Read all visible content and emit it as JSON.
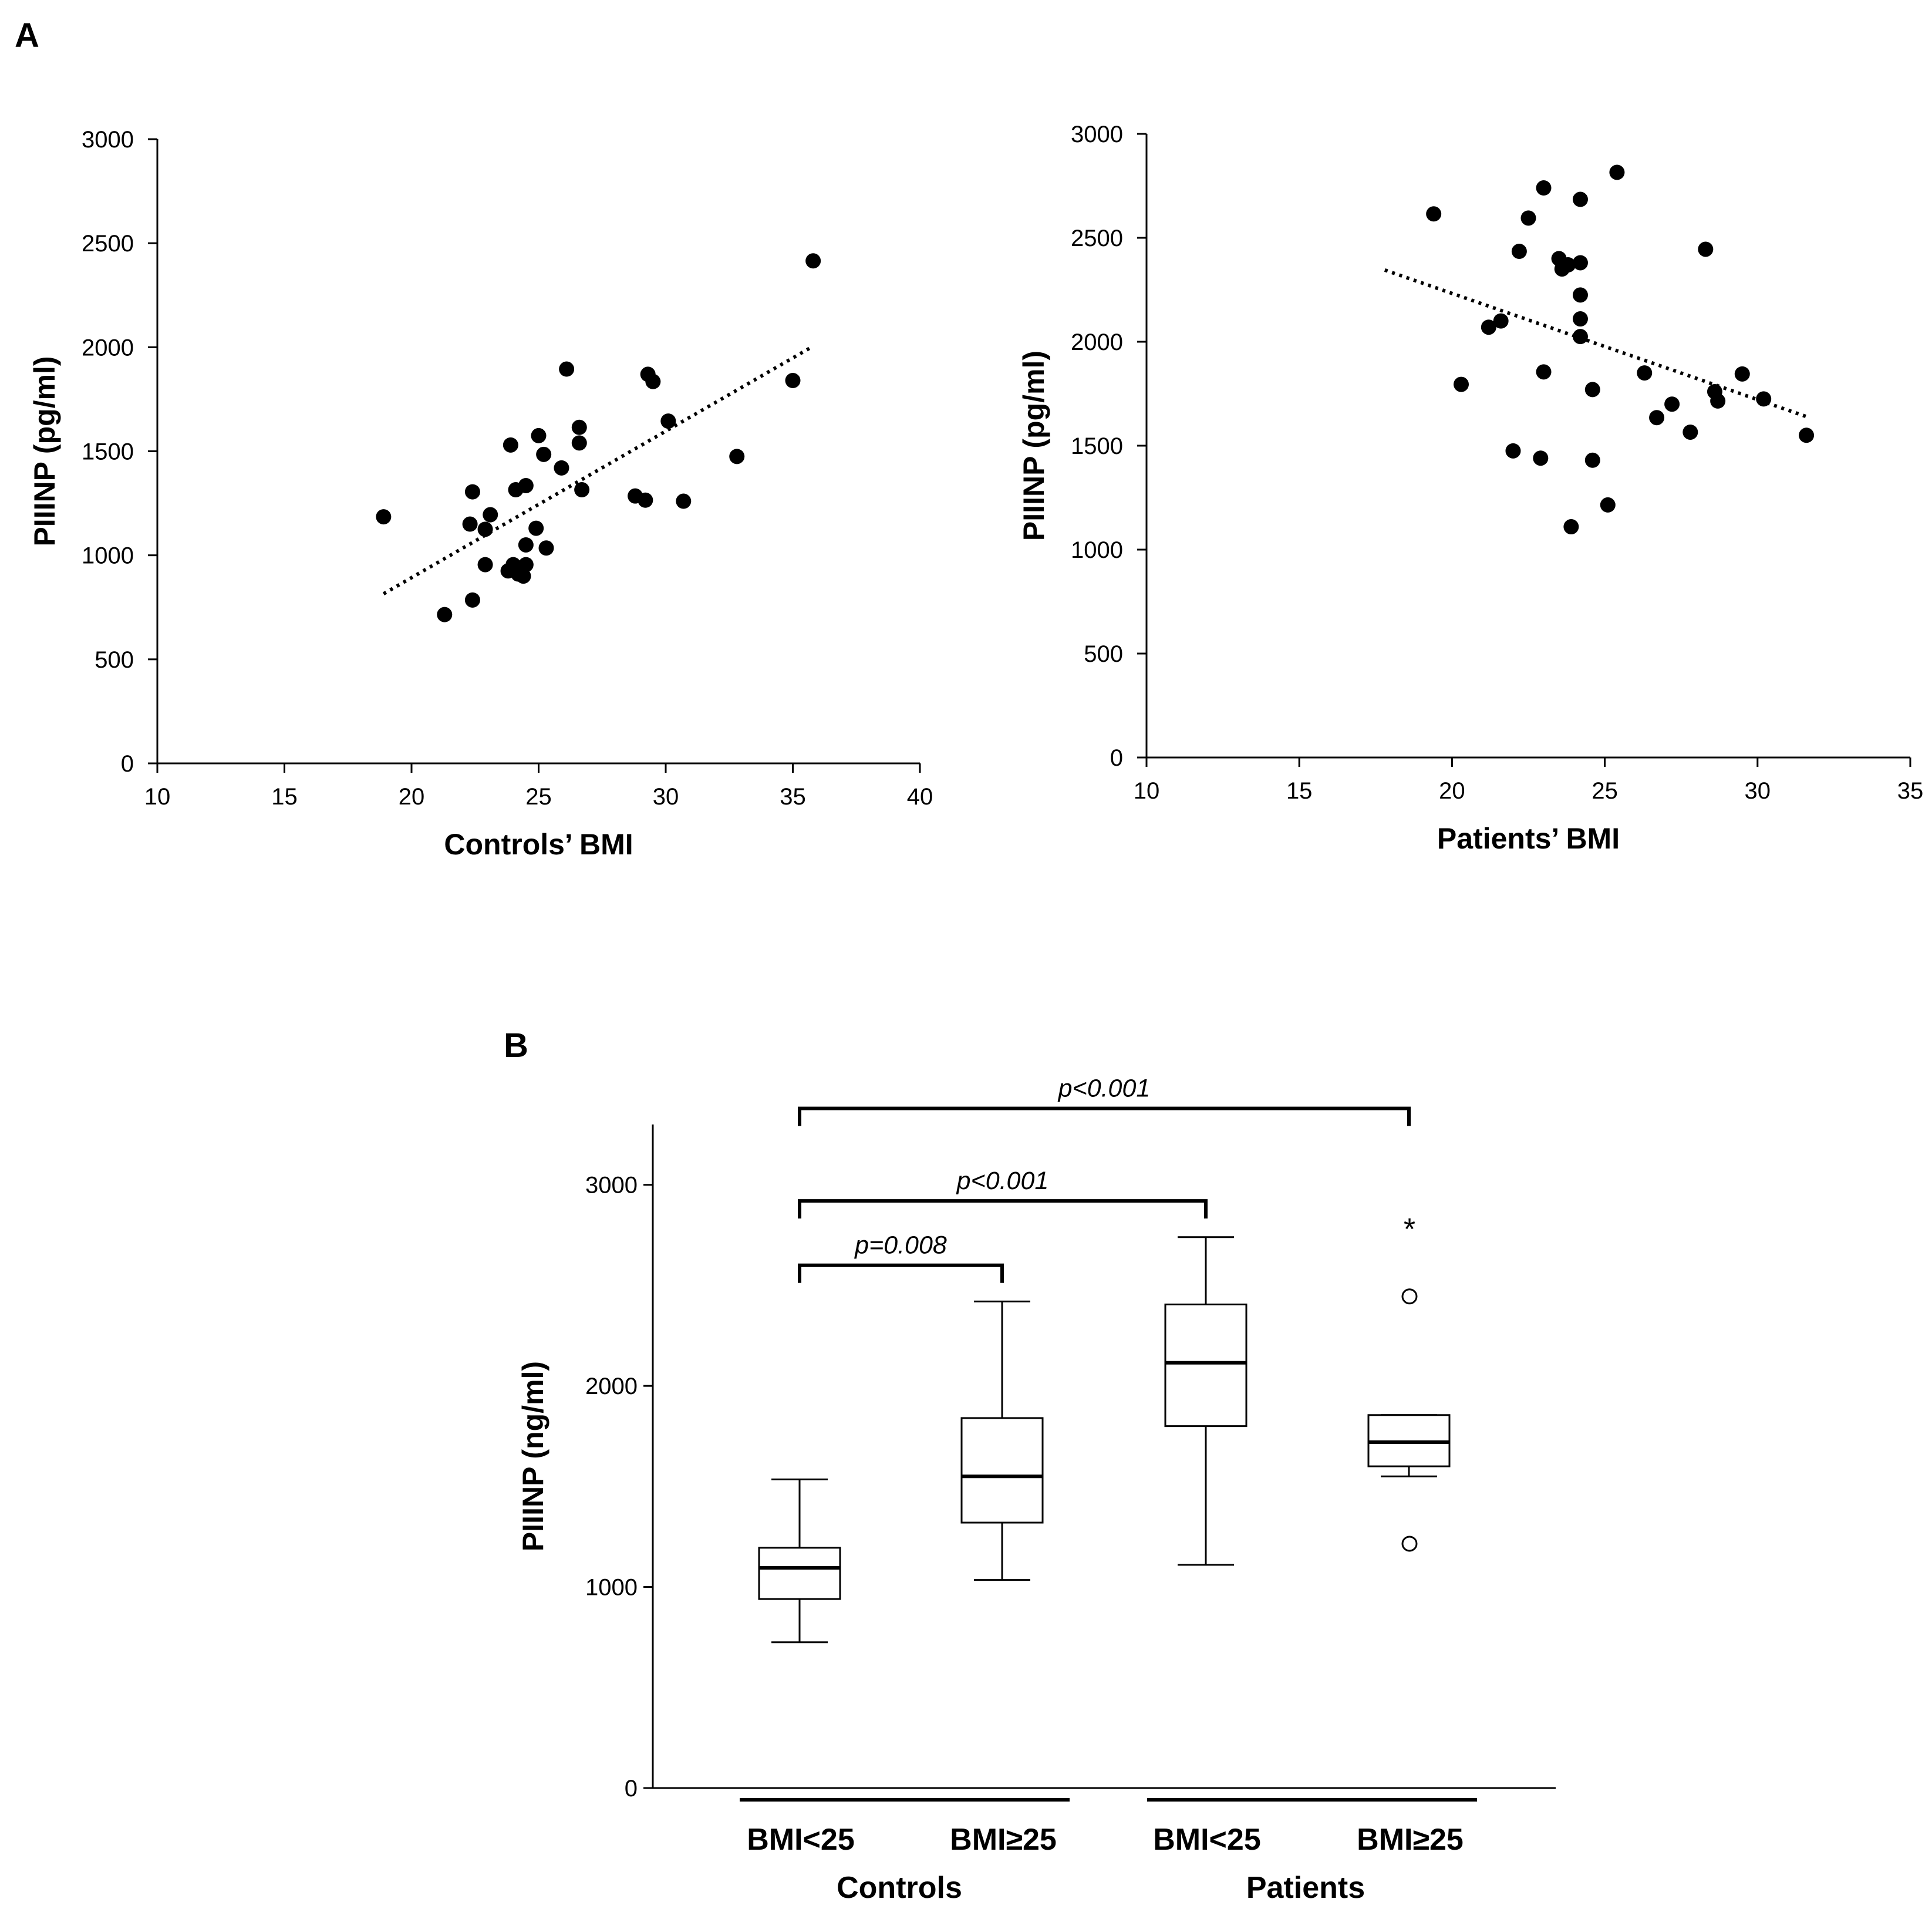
{
  "figure": {
    "panel_a_label": "A",
    "panel_b_label": "B"
  },
  "chart_data": [
    {
      "id": "controls",
      "type": "scatter",
      "title": "",
      "xlabel": "Controls’ BMI",
      "ylabel": "PIIINP (pg/ml)",
      "xlim": [
        10,
        40
      ],
      "ylim": [
        0,
        3000
      ],
      "xticks": [
        "10",
        "15",
        "20",
        "25",
        "30",
        "35",
        "40"
      ],
      "yticks": [
        "0",
        "500",
        "1000",
        "1500",
        "2000",
        "2500",
        "3000"
      ],
      "points": [
        [
          18.9,
          1185
        ],
        [
          21.3,
          715
        ],
        [
          22.3,
          1150
        ],
        [
          22.4,
          1305
        ],
        [
          22.4,
          785
        ],
        [
          22.9,
          1125
        ],
        [
          22.9,
          955
        ],
        [
          23.1,
          1195
        ],
        [
          23.8,
          925
        ],
        [
          23.9,
          1530
        ],
        [
          24.0,
          955
        ],
        [
          24.1,
          1315
        ],
        [
          24.2,
          910
        ],
        [
          24.4,
          900
        ],
        [
          24.5,
          955
        ],
        [
          24.5,
          1335
        ],
        [
          24.5,
          1050
        ],
        [
          24.9,
          1130
        ],
        [
          25.0,
          1575
        ],
        [
          25.2,
          1485
        ],
        [
          25.3,
          1035
        ],
        [
          25.9,
          1420
        ],
        [
          26.1,
          1895
        ],
        [
          26.6,
          1540
        ],
        [
          26.6,
          1615
        ],
        [
          26.7,
          1315
        ],
        [
          28.8,
          1285
        ],
        [
          29.2,
          1265
        ],
        [
          29.3,
          1870
        ],
        [
          29.5,
          1835
        ],
        [
          30.1,
          1645
        ],
        [
          30.7,
          1260
        ],
        [
          32.8,
          1475
        ],
        [
          35.0,
          1840
        ],
        [
          35.8,
          2415
        ]
      ],
      "trendline": {
        "x0": 18.9,
        "y0": 815,
        "x1": 35.8,
        "y1": 2005
      }
    },
    {
      "id": "patients",
      "type": "scatter",
      "title": "",
      "xlabel": "Patients’ BMI",
      "ylabel": "PIIINP (pg/ml)",
      "xlim": [
        10,
        35
      ],
      "ylim": [
        0,
        3000
      ],
      "xticks": [
        "10",
        "15",
        "20",
        "25",
        "30",
        "35"
      ],
      "yticks": [
        "0",
        "500",
        "1000",
        "1500",
        "2000",
        "2500",
        "3000"
      ],
      "points": [
        [
          19.4,
          2615
        ],
        [
          20.3,
          1795
        ],
        [
          21.2,
          2070
        ],
        [
          21.6,
          2100
        ],
        [
          22.0,
          1475
        ],
        [
          22.2,
          2435
        ],
        [
          22.5,
          2595
        ],
        [
          22.9,
          1440
        ],
        [
          23.0,
          1855
        ],
        [
          23.0,
          2740
        ],
        [
          23.5,
          2400
        ],
        [
          23.6,
          2350
        ],
        [
          23.8,
          2370
        ],
        [
          23.9,
          1110
        ],
        [
          24.2,
          2380
        ],
        [
          24.2,
          2225
        ],
        [
          24.2,
          2110
        ],
        [
          24.2,
          2025
        ],
        [
          24.2,
          2685
        ],
        [
          24.6,
          1770
        ],
        [
          24.6,
          1430
        ],
        [
          25.1,
          1215
        ],
        [
          25.4,
          2815
        ],
        [
          26.3,
          1850
        ],
        [
          26.7,
          1635
        ],
        [
          27.2,
          1700
        ],
        [
          27.8,
          1565
        ],
        [
          28.3,
          2445
        ],
        [
          28.6,
          1760
        ],
        [
          28.7,
          1715
        ],
        [
          29.5,
          1845
        ],
        [
          30.2,
          1725
        ],
        [
          31.6,
          1550
        ]
      ],
      "trendline": {
        "x0": 17.8,
        "y0": 2345,
        "x1": 31.6,
        "y1": 1640
      }
    },
    {
      "id": "boxplot",
      "type": "box",
      "title": "",
      "ylabel": "PIIINP (ng/ml)",
      "ylim": [
        0,
        3300
      ],
      "yticks": [
        "0",
        "1000",
        "2000",
        "3000"
      ],
      "categories": [
        "BMI<25",
        "BMI≥25",
        "BMI<25",
        "BMI≥25"
      ],
      "groups": [
        "Controls",
        "Patients"
      ],
      "boxes": [
        {
          "min": 725,
          "q1": 940,
          "median": 1095,
          "q3": 1195,
          "max": 1535,
          "outliers": [],
          "extremes": []
        },
        {
          "min": 1035,
          "q1": 1320,
          "median": 1550,
          "q3": 1840,
          "max": 2420,
          "outliers": [],
          "extremes": []
        },
        {
          "min": 1110,
          "q1": 1800,
          "median": 2115,
          "q3": 2405,
          "max": 2740,
          "outliers": [],
          "extremes": []
        },
        {
          "min": 1550,
          "q1": 1600,
          "median": 1720,
          "q3": 1855,
          "max": 1855,
          "outliers": [
            2445,
            1215
          ],
          "extremes": [
            2815
          ]
        }
      ],
      "extreme_marker": "*",
      "comparisons": [
        {
          "from": 0,
          "to": 1,
          "label": "p=0.008",
          "level": 2600
        },
        {
          "from": 0,
          "to": 2,
          "label": "p<0.001",
          "level": 2920
        },
        {
          "from": 0,
          "to": 3,
          "label": "p<0.001",
          "level": 3380
        }
      ]
    }
  ]
}
